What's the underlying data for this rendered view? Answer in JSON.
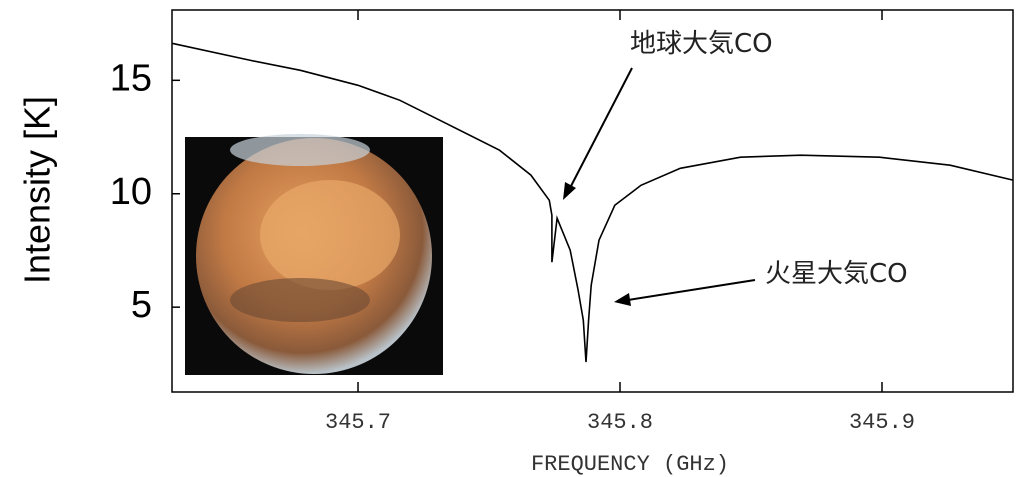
{
  "chart_data": {
    "type": "line",
    "ylabel": "Intensity [K]",
    "xlabel": "FREQUENCY (GHz)",
    "annotations": [
      "地球大気CO",
      "火星大気CO"
    ],
    "color": "#000000",
    "x": [
      345.629,
      345.659,
      345.678,
      345.7,
      345.716,
      345.735,
      345.754,
      345.766,
      345.773,
      345.774,
      345.774,
      345.776,
      345.781,
      345.784,
      345.786,
      345.787,
      345.788,
      345.789,
      345.792,
      345.798,
      345.808,
      345.823,
      345.846,
      345.869,
      345.899,
      345.926,
      345.95
    ],
    "values": [
      16.63,
      15.88,
      15.44,
      14.78,
      14.12,
      13.02,
      11.92,
      10.82,
      9.71,
      9.05,
      6.98,
      8.92,
      7.51,
      5.75,
      4.43,
      2.58,
      4.43,
      5.97,
      7.95,
      9.49,
      10.37,
      11.12,
      11.61,
      11.7,
      11.61,
      11.26,
      10.6
    ],
    "xlim": [
      345.629,
      345.95
    ],
    "ylim": [
      1.26,
      18.1
    ],
    "xticks": [
      345.7,
      345.8,
      345.9
    ],
    "yticks": [
      5,
      10,
      15
    ]
  }
}
